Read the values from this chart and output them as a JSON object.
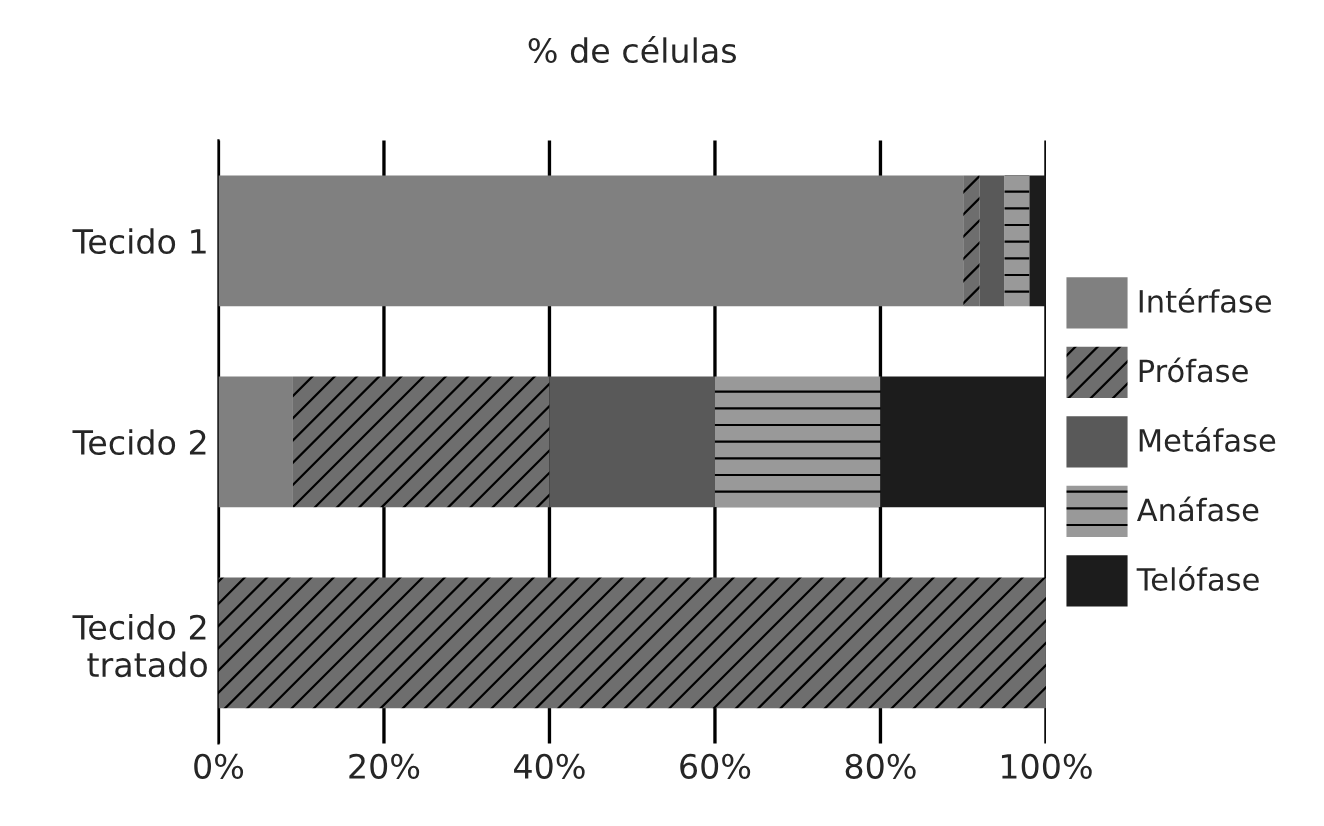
{
  "chart_data": {
    "type": "bar",
    "orientation": "horizontal",
    "stacked": true,
    "title": "% de células",
    "categories": [
      "Tecido 1",
      "Tecido 2",
      "Tecido 2\ntratado"
    ],
    "series": [
      {
        "name": "Intérfase",
        "color": "#808080",
        "values": [
          90,
          9,
          0
        ]
      },
      {
        "name": "Prófase",
        "color": "#6e6e6e",
        "values": [
          2,
          31,
          100
        ]
      },
      {
        "name": "Metáfase",
        "color": "#595959",
        "values": [
          3,
          20,
          0
        ]
      },
      {
        "name": "Anáfase",
        "color": "#999999",
        "values": [
          3,
          20,
          0
        ]
      },
      {
        "name": "Telófase",
        "color": "#1c1c1c",
        "values": [
          2,
          20,
          0
        ]
      }
    ],
    "xlim": [
      0,
      100
    ],
    "xticks": [
      {
        "value": 0,
        "label": "0%"
      },
      {
        "value": 20,
        "label": "20%"
      },
      {
        "value": 40,
        "label": "40%"
      },
      {
        "value": 60,
        "label": "60%"
      },
      {
        "value": 80,
        "label": "80%"
      },
      {
        "value": 100,
        "label": "100%"
      }
    ],
    "grid": "x",
    "legend": "right"
  }
}
